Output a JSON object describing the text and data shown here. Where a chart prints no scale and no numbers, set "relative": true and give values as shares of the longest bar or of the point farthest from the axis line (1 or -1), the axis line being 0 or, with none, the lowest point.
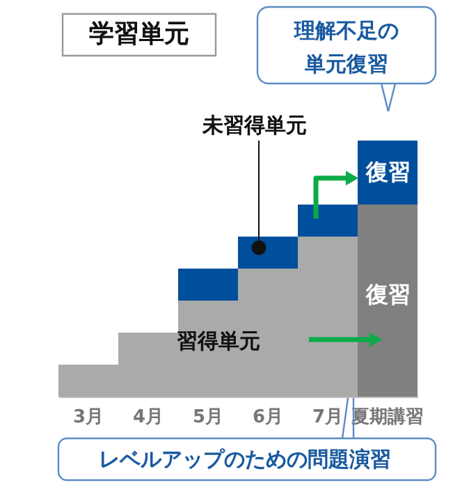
{
  "chart_data": {
    "type": "bar",
    "title": "学習単元",
    "stacked": true,
    "relative": true,
    "categories": [
      "3月",
      "4月",
      "5月",
      "6月",
      "7月",
      "夏期講習"
    ],
    "series": [
      {
        "colors": [
          "#aaaaaa",
          "#aaaaaa",
          "#aaaaaa",
          "#aaaaaa",
          "#aaaaaa",
          "#808080"
        ],
        "values": [
          0.125,
          0.25,
          0.375,
          0.5,
          0.625,
          0.75
        ]
      },
      {
        "colors": [
          "#004f9c",
          "#004f9c",
          "#004f9c",
          "#004f9c",
          "#004f9c",
          "#004f9c"
        ],
        "values": [
          0,
          0,
          0.125,
          0.125,
          0.125,
          0.25
        ]
      }
    ],
    "annotations": [
      "理解不足の",
      "単元復習",
      "未習得単元",
      "習得単元",
      "復習",
      "復習",
      "レベルアップのための問題演習"
    ]
  }
}
